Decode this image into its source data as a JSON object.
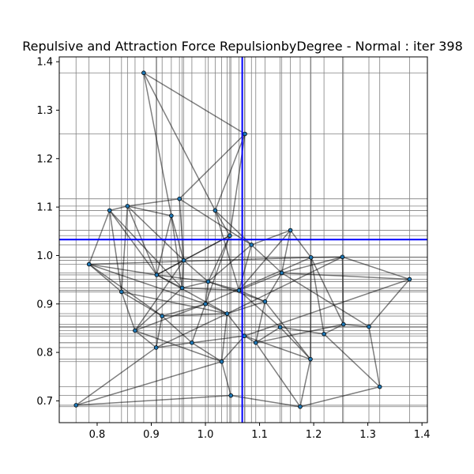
{
  "chart_data": {
    "type": "scatter",
    "title": "Repulsive and Attraction Force RepulsionbyDegree - Normal : iter 398",
    "xlabel": "",
    "ylabel": "",
    "xlim": [
      0.73,
      1.41
    ],
    "ylim": [
      0.655,
      1.41
    ],
    "xticks": [
      0.8,
      0.9,
      1.0,
      1.1,
      1.2,
      1.3,
      1.4
    ],
    "xtick_labels": [
      "0.8",
      "0.9",
      "1.0",
      "1.1",
      "1.2",
      "1.3",
      "1.4"
    ],
    "yticks": [
      0.7,
      0.8,
      0.9,
      1.0,
      1.1,
      1.2,
      1.3,
      1.4
    ],
    "ytick_labels": [
      "0.7",
      "0.8",
      "0.9",
      "1.0",
      "1.1",
      "1.2",
      "1.3",
      "1.4"
    ],
    "grid": true,
    "crosshair": {
      "x": 1.068,
      "y": 1.033,
      "color": "#0000ff"
    },
    "colors": {
      "point": "#1f77b4",
      "edge": "#000000",
      "grid": "#808080"
    },
    "points": [
      {
        "x": 0.886,
        "y": 1.377
      },
      {
        "x": 1.073,
        "y": 1.251
      },
      {
        "x": 0.952,
        "y": 1.117
      },
      {
        "x": 1.018,
        "y": 1.093
      },
      {
        "x": 0.856,
        "y": 1.102
      },
      {
        "x": 0.823,
        "y": 1.093
      },
      {
        "x": 0.937,
        "y": 1.082
      },
      {
        "x": 0.785,
        "y": 0.982
      },
      {
        "x": 1.157,
        "y": 1.052
      },
      {
        "x": 1.195,
        "y": 0.996
      },
      {
        "x": 1.253,
        "y": 0.997
      },
      {
        "x": 1.377,
        "y": 0.951
      },
      {
        "x": 1.085,
        "y": 1.022
      },
      {
        "x": 1.045,
        "y": 1.041
      },
      {
        "x": 0.91,
        "y": 0.96
      },
      {
        "x": 0.957,
        "y": 0.933
      },
      {
        "x": 1.005,
        "y": 0.946
      },
      {
        "x": 1.062,
        "y": 0.928
      },
      {
        "x": 1.141,
        "y": 0.964
      },
      {
        "x": 0.845,
        "y": 0.925
      },
      {
        "x": 0.92,
        "y": 0.875
      },
      {
        "x": 0.87,
        "y": 0.845
      },
      {
        "x": 0.909,
        "y": 0.81
      },
      {
        "x": 0.975,
        "y": 0.82
      },
      {
        "x": 1.03,
        "y": 0.781
      },
      {
        "x": 1.072,
        "y": 0.834
      },
      {
        "x": 1.093,
        "y": 0.82
      },
      {
        "x": 1.138,
        "y": 0.852
      },
      {
        "x": 1.194,
        "y": 0.786
      },
      {
        "x": 1.219,
        "y": 0.838
      },
      {
        "x": 1.255,
        "y": 0.858
      },
      {
        "x": 1.302,
        "y": 0.853
      },
      {
        "x": 1.322,
        "y": 0.729
      },
      {
        "x": 1.175,
        "y": 0.688
      },
      {
        "x": 1.047,
        "y": 0.711
      },
      {
        "x": 0.761,
        "y": 0.691
      },
      {
        "x": 1.0,
        "y": 0.9
      },
      {
        "x": 1.04,
        "y": 0.88
      },
      {
        "x": 0.96,
        "y": 0.99
      },
      {
        "x": 1.11,
        "y": 0.905
      }
    ],
    "edges": [
      [
        0,
        1
      ],
      [
        0,
        3
      ],
      [
        1,
        2
      ],
      [
        1,
        3
      ],
      [
        2,
        4
      ],
      [
        2,
        12
      ],
      [
        3,
        13
      ],
      [
        3,
        17
      ],
      [
        4,
        5
      ],
      [
        4,
        6
      ],
      [
        4,
        14
      ],
      [
        5,
        7
      ],
      [
        5,
        19
      ],
      [
        6,
        14
      ],
      [
        6,
        15
      ],
      [
        7,
        19
      ],
      [
        7,
        20
      ],
      [
        7,
        9
      ],
      [
        7,
        14
      ],
      [
        8,
        9
      ],
      [
        8,
        18
      ],
      [
        8,
        17
      ],
      [
        9,
        10
      ],
      [
        9,
        28
      ],
      [
        9,
        36
      ],
      [
        10,
        11
      ],
      [
        10,
        30
      ],
      [
        10,
        37
      ],
      [
        11,
        25
      ],
      [
        11,
        31
      ],
      [
        12,
        17
      ],
      [
        12,
        18
      ],
      [
        13,
        14
      ],
      [
        13,
        16
      ],
      [
        14,
        15
      ],
      [
        14,
        16
      ],
      [
        15,
        16
      ],
      [
        15,
        38
      ],
      [
        16,
        17
      ],
      [
        16,
        36
      ],
      [
        17,
        18
      ],
      [
        17,
        39
      ],
      [
        19,
        20
      ],
      [
        19,
        21
      ],
      [
        20,
        22
      ],
      [
        20,
        23
      ],
      [
        21,
        22
      ],
      [
        22,
        23
      ],
      [
        23,
        24
      ],
      [
        23,
        36
      ],
      [
        24,
        25
      ],
      [
        24,
        37
      ],
      [
        25,
        26
      ],
      [
        25,
        28
      ],
      [
        26,
        27
      ],
      [
        26,
        39
      ],
      [
        27,
        28
      ],
      [
        27,
        29
      ],
      [
        28,
        33
      ],
      [
        29,
        30
      ],
      [
        30,
        31
      ],
      [
        31,
        32
      ],
      [
        32,
        33
      ],
      [
        33,
        34
      ],
      [
        34,
        35
      ],
      [
        34,
        24
      ],
      [
        35,
        22
      ],
      [
        33,
        26
      ],
      [
        31,
        18
      ],
      [
        29,
        9
      ],
      [
        28,
        39
      ],
      [
        36,
        37
      ],
      [
        37,
        39
      ],
      [
        38,
        16
      ],
      [
        38,
        14
      ],
      [
        36,
        20
      ],
      [
        37,
        25
      ],
      [
        39,
        18
      ],
      [
        21,
        36
      ],
      [
        5,
        14
      ],
      [
        6,
        38
      ],
      [
        12,
        16
      ],
      [
        13,
        38
      ],
      [
        0,
        6
      ],
      [
        2,
        38
      ],
      [
        3,
        12
      ],
      [
        18,
        11
      ],
      [
        30,
        9
      ],
      [
        27,
        17
      ],
      [
        15,
        21
      ],
      [
        24,
        21
      ],
      [
        4,
        38
      ],
      [
        8,
        12
      ],
      [
        10,
        18
      ],
      [
        32,
        29
      ],
      [
        35,
        24
      ],
      [
        7,
        36
      ],
      [
        19,
        37
      ],
      [
        22,
        37
      ],
      [
        23,
        25
      ],
      [
        26,
        30
      ],
      [
        5,
        15
      ],
      [
        4,
        19
      ],
      [
        13,
        36
      ],
      [
        1,
        13
      ],
      [
        14,
        37
      ],
      [
        15,
        17
      ],
      [
        16,
        39
      ],
      [
        20,
        37
      ],
      [
        21,
        38
      ]
    ]
  }
}
